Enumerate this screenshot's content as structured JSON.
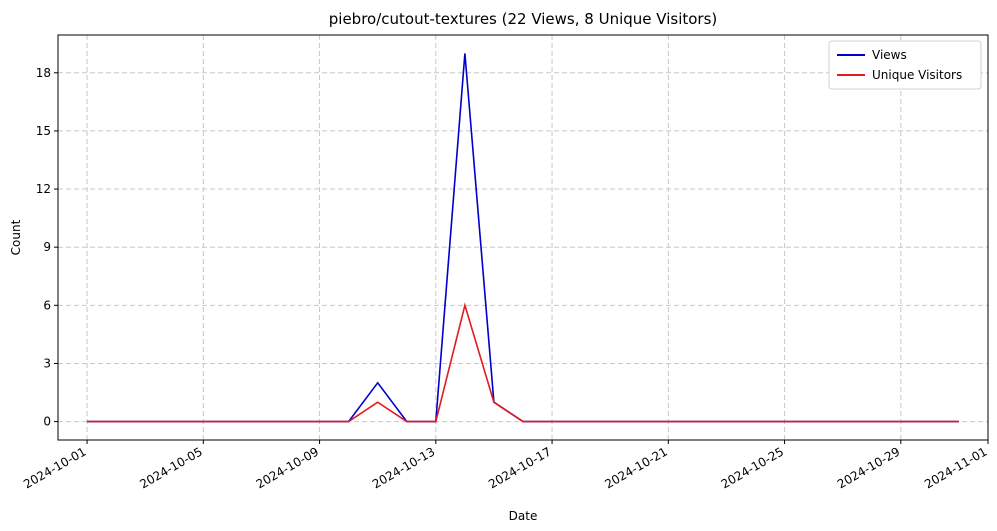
{
  "chart_data": {
    "type": "line",
    "title": "piebro/cutout-textures (22 Views, 8 Unique Visitors)",
    "xlabel": "Date",
    "ylabel": "Count",
    "x": [
      "2024-10-01",
      "2024-10-02",
      "2024-10-03",
      "2024-10-04",
      "2024-10-05",
      "2024-10-06",
      "2024-10-07",
      "2024-10-08",
      "2024-10-09",
      "2024-10-10",
      "2024-10-11",
      "2024-10-12",
      "2024-10-13",
      "2024-10-14",
      "2024-10-15",
      "2024-10-16",
      "2024-10-17",
      "2024-10-18",
      "2024-10-19",
      "2024-10-20",
      "2024-10-21",
      "2024-10-22",
      "2024-10-23",
      "2024-10-24",
      "2024-10-25",
      "2024-10-26",
      "2024-10-27",
      "2024-10-28",
      "2024-10-29",
      "2024-10-30",
      "2024-10-31"
    ],
    "series": [
      {
        "name": "Views",
        "color": "#0000cc",
        "values": [
          0,
          0,
          0,
          0,
          0,
          0,
          0,
          0,
          0,
          0,
          2,
          0,
          0,
          19,
          1,
          0,
          0,
          0,
          0,
          0,
          0,
          0,
          0,
          0,
          0,
          0,
          0,
          0,
          0,
          0,
          0
        ]
      },
      {
        "name": "Unique Visitors",
        "color": "#e41a1c",
        "values": [
          0,
          0,
          0,
          0,
          0,
          0,
          0,
          0,
          0,
          0,
          1,
          0,
          0,
          6,
          1,
          0,
          0,
          0,
          0,
          0,
          0,
          0,
          0,
          0,
          0,
          0,
          0,
          0,
          0,
          0,
          0
        ]
      }
    ],
    "xticks": [
      "2024-10-01",
      "2024-10-05",
      "2024-10-09",
      "2024-10-13",
      "2024-10-17",
      "2024-10-21",
      "2024-10-25",
      "2024-10-29",
      "2024-11-01"
    ],
    "yticks": [
      0,
      3,
      6,
      9,
      12,
      15,
      18
    ],
    "xlim": [
      "2024-09-30",
      "2024-11-01"
    ],
    "ylim": [
      -0.95,
      19.95
    ],
    "grid": true,
    "legend_position": "top-right"
  }
}
